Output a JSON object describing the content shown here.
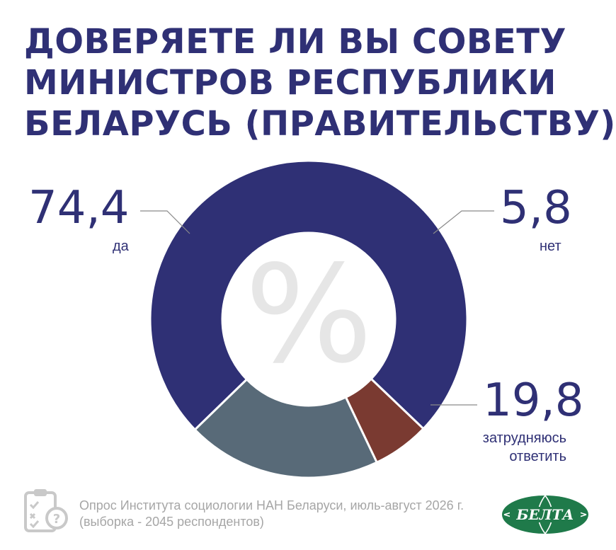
{
  "title_lines": [
    "ДОВЕРЯЕТЕ ЛИ ВЫ СОВЕТУ",
    "МИНИСТРОВ РЕСПУБЛИКИ",
    "БЕЛАРУСЬ (ПРАВИТЕЛЬСТВУ)?"
  ],
  "center_symbol": "%",
  "chart_data": {
    "type": "pie",
    "donut": true,
    "slices": [
      {
        "label": "да",
        "value": 74.4,
        "display": "74,4",
        "color": "#2f3075"
      },
      {
        "label": "нет",
        "value": 5.8,
        "display": "5,8",
        "color": "#7a3a31"
      },
      {
        "label": "затрудняюсь ответить",
        "label_lines": [
          "затрудняюсь",
          "ответить"
        ],
        "value": 19.8,
        "display": "19,8",
        "color": "#586a78"
      }
    ]
  },
  "footer": {
    "icon": "clipboard-question-icon",
    "lines": [
      "Опрос Института социологии НАН Беларуси, июль-август 2026 г.",
      "(выборка - 2045 респондентов)"
    ]
  },
  "logo": {
    "text": "БЕЛТА",
    "color": "#1f7a4a"
  }
}
